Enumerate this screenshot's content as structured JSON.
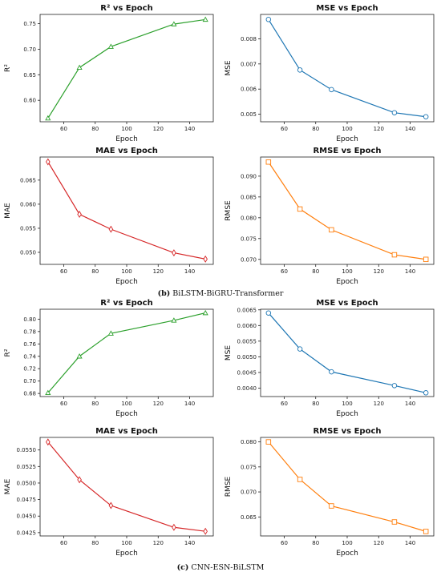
{
  "sections": [
    {
      "tag": "(b)",
      "caption": "BiLSTM-BiGRU-Transformer"
    },
    {
      "tag": "(c)",
      "caption": "CNN-ESN-BiLSTM"
    }
  ],
  "chart_data": [
    {
      "type": "line",
      "title": "R² vs Epoch",
      "xlabel": "Epoch",
      "ylabel": "R²",
      "x": [
        50,
        70,
        90,
        130,
        150
      ],
      "values": [
        0.565,
        0.664,
        0.705,
        0.749,
        0.758
      ],
      "xlim": [
        45,
        155
      ],
      "ylim": [
        0.558,
        0.768
      ],
      "xticks": [
        60,
        80,
        100,
        120,
        140
      ],
      "yticks": [
        0.6,
        0.65,
        0.7,
        0.75
      ],
      "xtick_labels": [
        "60",
        "80",
        "100",
        "120",
        "140"
      ],
      "ytick_labels": [
        "0.60",
        "0.65",
        "0.70",
        "0.75"
      ],
      "color": "#2ca02c",
      "marker": "triangle"
    },
    {
      "type": "line",
      "title": "MSE vs Epoch",
      "xlabel": "Epoch",
      "ylabel": "MSE",
      "x": [
        50,
        70,
        90,
        130,
        150
      ],
      "values": [
        0.00877,
        0.00676,
        0.00598,
        0.00506,
        0.0049
      ],
      "xlim": [
        45,
        155
      ],
      "ylim": [
        0.0047,
        0.00897
      ],
      "xticks": [
        60,
        80,
        100,
        120,
        140
      ],
      "yticks": [
        0.005,
        0.006,
        0.007,
        0.008
      ],
      "xtick_labels": [
        "60",
        "80",
        "100",
        "120",
        "140"
      ],
      "ytick_labels": [
        "0.005",
        "0.006",
        "0.007",
        "0.008"
      ],
      "color": "#1f77b4",
      "marker": "circle"
    },
    {
      "type": "line",
      "title": "MAE vs Epoch",
      "xlabel": "Epoch",
      "ylabel": "MAE",
      "x": [
        50,
        70,
        90,
        130,
        150
      ],
      "values": [
        0.0688,
        0.0579,
        0.0548,
        0.0499,
        0.0486
      ],
      "xlim": [
        45,
        155
      ],
      "ylim": [
        0.0475,
        0.0698
      ],
      "xticks": [
        60,
        80,
        100,
        120,
        140
      ],
      "yticks": [
        0.05,
        0.055,
        0.06,
        0.065
      ],
      "xtick_labels": [
        "60",
        "80",
        "100",
        "120",
        "140"
      ],
      "ytick_labels": [
        "0.050",
        "0.055",
        "0.060",
        "0.065"
      ],
      "color": "#d62728",
      "marker": "diamond"
    },
    {
      "type": "line",
      "title": "RMSE vs Epoch",
      "xlabel": "Epoch",
      "ylabel": "RMSE",
      "x": [
        50,
        70,
        90,
        130,
        150
      ],
      "values": [
        0.0934,
        0.0821,
        0.0771,
        0.0711,
        0.07
      ],
      "xlim": [
        45,
        155
      ],
      "ylim": [
        0.0688,
        0.0946
      ],
      "xticks": [
        60,
        80,
        100,
        120,
        140
      ],
      "yticks": [
        0.07,
        0.075,
        0.08,
        0.085,
        0.09
      ],
      "xtick_labels": [
        "60",
        "80",
        "100",
        "120",
        "140"
      ],
      "ytick_labels": [
        "0.070",
        "0.075",
        "0.080",
        "0.085",
        "0.090"
      ],
      "color": "#ff7f0e",
      "marker": "square"
    },
    {
      "type": "line",
      "title": "R² vs Epoch",
      "xlabel": "Epoch",
      "ylabel": "R²",
      "x": [
        50,
        70,
        90,
        130,
        150
      ],
      "values": [
        0.681,
        0.74,
        0.777,
        0.798,
        0.81
      ],
      "xlim": [
        45,
        155
      ],
      "ylim": [
        0.675,
        0.816
      ],
      "xticks": [
        60,
        80,
        100,
        120,
        140
      ],
      "yticks": [
        0.68,
        0.7,
        0.72,
        0.74,
        0.76,
        0.78,
        0.8
      ],
      "xtick_labels": [
        "60",
        "80",
        "100",
        "120",
        "140"
      ],
      "ytick_labels": [
        "0.68",
        "0.70",
        "0.72",
        "0.74",
        "0.76",
        "0.78",
        "0.80"
      ],
      "color": "#2ca02c",
      "marker": "triangle"
    },
    {
      "type": "line",
      "title": "MSE vs Epoch",
      "xlabel": "Epoch",
      "ylabel": "MSE",
      "x": [
        50,
        70,
        90,
        130,
        150
      ],
      "values": [
        0.0064,
        0.00525,
        0.00452,
        0.00408,
        0.00385
      ],
      "xlim": [
        45,
        155
      ],
      "ylim": [
        0.00373,
        0.00652
      ],
      "xticks": [
        60,
        80,
        100,
        120,
        140
      ],
      "yticks": [
        0.004,
        0.0045,
        0.005,
        0.0055,
        0.006,
        0.0065
      ],
      "xtick_labels": [
        "60",
        "80",
        "100",
        "120",
        "140"
      ],
      "ytick_labels": [
        "0.0040",
        "0.0045",
        "0.0050",
        "0.0055",
        "0.0060",
        "0.0065"
      ],
      "color": "#1f77b4",
      "marker": "circle"
    },
    {
      "type": "line",
      "title": "MAE vs Epoch",
      "xlabel": "Epoch",
      "ylabel": "MAE",
      "x": [
        50,
        70,
        90,
        130,
        150
      ],
      "values": [
        0.0562,
        0.0505,
        0.0466,
        0.0433,
        0.0427
      ],
      "xlim": [
        45,
        155
      ],
      "ylim": [
        0.042,
        0.0569
      ],
      "xticks": [
        60,
        80,
        100,
        120,
        140
      ],
      "yticks": [
        0.0425,
        0.045,
        0.0475,
        0.05,
        0.0525,
        0.055
      ],
      "xtick_labels": [
        "60",
        "80",
        "100",
        "120",
        "140"
      ],
      "ytick_labels": [
        "0.0425",
        "0.0450",
        "0.0475",
        "0.0500",
        "0.0525",
        "0.0550"
      ],
      "color": "#d62728",
      "marker": "diamond"
    },
    {
      "type": "line",
      "title": "RMSE vs Epoch",
      "xlabel": "Epoch",
      "ylabel": "RMSE",
      "x": [
        50,
        70,
        90,
        130,
        150
      ],
      "values": [
        0.08,
        0.0725,
        0.0672,
        0.064,
        0.0621
      ],
      "xlim": [
        45,
        155
      ],
      "ylim": [
        0.0612,
        0.0809
      ],
      "xticks": [
        60,
        80,
        100,
        120,
        140
      ],
      "yticks": [
        0.065,
        0.07,
        0.075,
        0.08
      ],
      "xtick_labels": [
        "60",
        "80",
        "100",
        "120",
        "140"
      ],
      "ytick_labels": [
        "0.065",
        "0.070",
        "0.075",
        "0.080"
      ],
      "color": "#ff7f0e",
      "marker": "square"
    }
  ]
}
